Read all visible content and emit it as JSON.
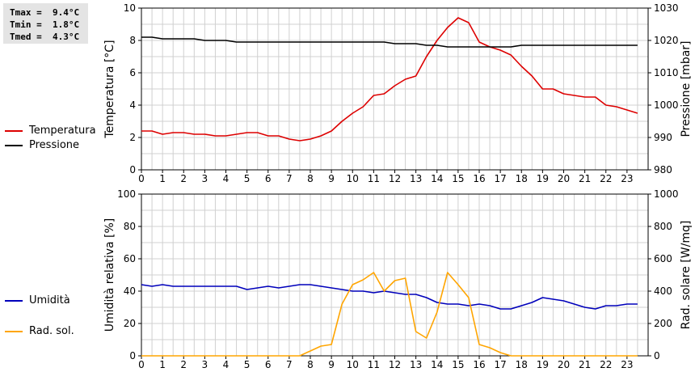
{
  "stats": {
    "tmax": "Tmax =  9.4°C",
    "tmin": "Tmin =  1.8°C",
    "tmed": "Tmed =  4.3°C"
  },
  "legend_top": [
    {
      "label": "Temperatura",
      "color": "#dd0000"
    },
    {
      "label": "Pressione",
      "color": "#000000"
    }
  ],
  "legend_bottom": [
    {
      "label": "Umidità",
      "color": "#0000bb"
    },
    {
      "label": "Rad. sol.",
      "color": "#ffa500"
    }
  ],
  "chart_data": [
    {
      "type": "line",
      "ylabel_left": "Temperatura [°C]",
      "ylabel_right": "Pressione [mbar]",
      "xlim": [
        0,
        24
      ],
      "xticks": [
        0,
        1,
        2,
        3,
        4,
        5,
        6,
        7,
        8,
        9,
        10,
        11,
        12,
        13,
        14,
        15,
        16,
        17,
        18,
        19,
        20,
        21,
        22,
        23
      ],
      "ylim_left": [
        0,
        10
      ],
      "yticks_left": [
        0,
        2,
        4,
        6,
        8,
        10
      ],
      "ylim_right": [
        980,
        1030
      ],
      "yticks_right": [
        980,
        990,
        1000,
        1010,
        1020,
        1030
      ],
      "grid": true,
      "series": [
        {
          "name": "Temperatura",
          "axis": "left",
          "color": "#dd0000",
          "x": [
            0,
            0.5,
            1,
            1.5,
            2,
            2.5,
            3,
            3.5,
            4,
            4.5,
            5,
            5.5,
            6,
            6.5,
            7,
            7.5,
            8,
            8.5,
            9,
            9.5,
            10,
            10.5,
            11,
            11.5,
            12,
            12.5,
            13,
            13.5,
            14,
            14.5,
            15,
            15.5,
            16,
            16.5,
            17,
            17.5,
            18,
            18.5,
            19,
            19.5,
            20,
            20.5,
            21,
            21.5,
            22,
            22.5,
            23,
            23.5
          ],
          "y": [
            2.4,
            2.4,
            2.2,
            2.3,
            2.3,
            2.2,
            2.2,
            2.1,
            2.1,
            2.2,
            2.3,
            2.3,
            2.1,
            2.1,
            1.9,
            1.8,
            1.9,
            2.1,
            2.4,
            3.0,
            3.5,
            3.9,
            4.6,
            4.7,
            5.2,
            5.6,
            5.8,
            7.0,
            8.0,
            8.8,
            9.4,
            9.1,
            7.9,
            7.6,
            7.4,
            7.1,
            6.4,
            5.8,
            5.0,
            5.0,
            4.7,
            4.6,
            4.5,
            4.5,
            4.0,
            3.9,
            3.7,
            3.5
          ]
        },
        {
          "name": "Pressione",
          "axis": "right",
          "color": "#000000",
          "x": [
            0,
            0.5,
            1,
            2.5,
            3,
            4,
            4.5,
            11.5,
            12,
            13,
            13.5,
            14,
            14.5,
            15,
            16,
            17,
            17.5,
            18,
            23.5
          ],
          "y": [
            1021,
            1021,
            1020.5,
            1020.5,
            1020,
            1020,
            1019.5,
            1019.5,
            1019,
            1019,
            1018.5,
            1018.5,
            1018,
            1018,
            1018,
            1018,
            1018,
            1018.5,
            1018.5
          ]
        }
      ]
    },
    {
      "type": "line",
      "ylabel_left": "Umidità relativa [%]",
      "ylabel_right": "Rad. solare [W/mq]",
      "xlim": [
        0,
        24
      ],
      "xticks": [
        0,
        1,
        2,
        3,
        4,
        5,
        6,
        7,
        8,
        9,
        10,
        11,
        12,
        13,
        14,
        15,
        16,
        17,
        18,
        19,
        20,
        21,
        22,
        23
      ],
      "ylim_left": [
        0,
        100
      ],
      "yticks_left": [
        0,
        20,
        40,
        60,
        80,
        100
      ],
      "ylim_right": [
        0,
        1000
      ],
      "yticks_right": [
        0,
        200,
        400,
        600,
        800,
        1000
      ],
      "grid": true,
      "series": [
        {
          "name": "Umidità",
          "axis": "left",
          "color": "#0000bb",
          "x": [
            0,
            0.5,
            1,
            1.5,
            2,
            2.5,
            3,
            3.5,
            4,
            4.5,
            5,
            5.5,
            6,
            6.5,
            7,
            7.5,
            8,
            8.5,
            9,
            9.5,
            10,
            10.5,
            11,
            11.5,
            12,
            12.5,
            13,
            13.5,
            14,
            14.5,
            15,
            15.5,
            16,
            16.5,
            17,
            17.5,
            18,
            18.5,
            19,
            19.5,
            20,
            20.5,
            21,
            21.5,
            22,
            22.5,
            23,
            23.5
          ],
          "y": [
            44,
            43,
            44,
            43,
            43,
            43,
            43,
            43,
            43,
            43,
            41,
            42,
            43,
            42,
            43,
            44,
            44,
            43,
            42,
            41,
            40,
            40,
            39,
            40,
            39,
            38,
            38,
            36,
            33,
            32,
            32,
            31,
            32,
            31,
            29,
            29,
            31,
            33,
            36,
            35,
            34,
            32,
            30,
            29,
            31,
            31,
            32,
            32
          ]
        },
        {
          "name": "Rad. sol.",
          "axis": "right",
          "color": "#ffa500",
          "x": [
            0,
            0.5,
            1,
            1.5,
            2,
            2.5,
            3,
            3.5,
            4,
            4.5,
            5,
            5.5,
            6,
            6.5,
            7,
            7.5,
            8,
            8.5,
            9,
            9.5,
            10,
            10.5,
            11,
            11.5,
            12,
            12.5,
            13,
            13.5,
            14,
            14.5,
            15,
            15.5,
            16,
            16.5,
            17,
            17.5,
            18,
            18.5,
            19,
            19.5,
            20,
            20.5,
            21,
            21.5,
            22,
            22.5,
            23,
            23.5
          ],
          "y": [
            0,
            0,
            0,
            0,
            0,
            0,
            0,
            0,
            0,
            0,
            0,
            0,
            0,
            0,
            0,
            0,
            30,
            60,
            70,
            320,
            440,
            470,
            515,
            400,
            465,
            480,
            150,
            110,
            270,
            515,
            440,
            360,
            70,
            50,
            20,
            0,
            0,
            0,
            0,
            0,
            0,
            0,
            0,
            0,
            0,
            0,
            0,
            0
          ]
        }
      ]
    }
  ]
}
